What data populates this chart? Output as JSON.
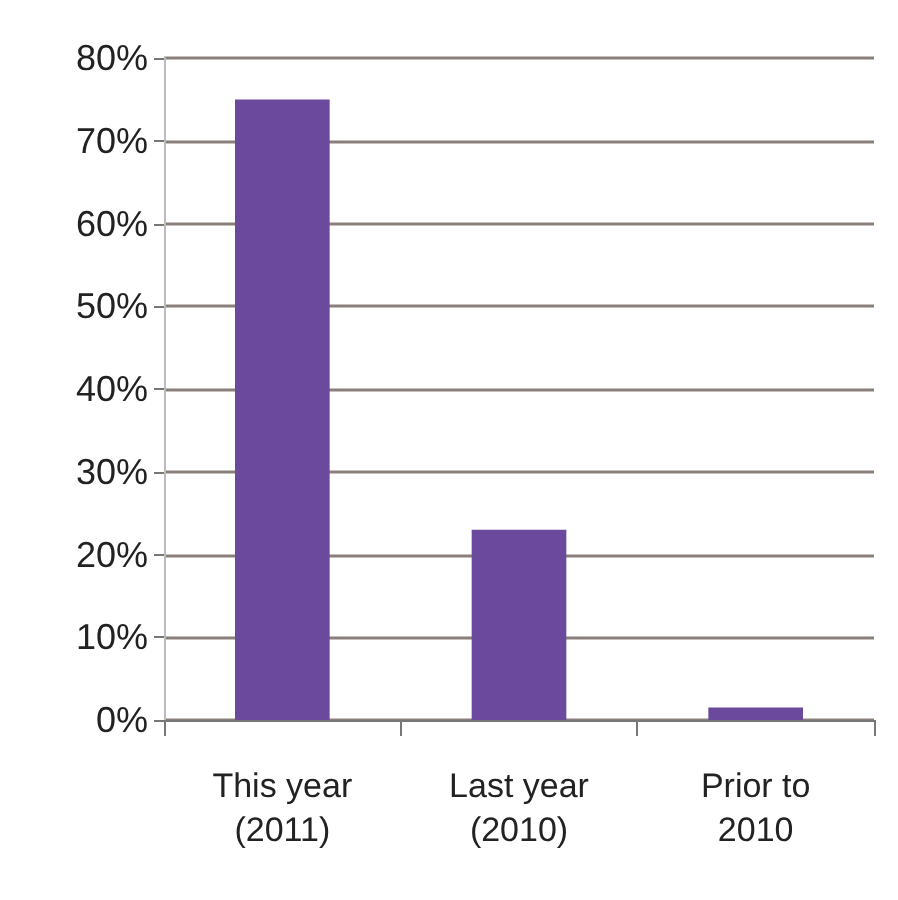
{
  "chart_data": {
    "type": "bar",
    "categories": [
      "This year\n(2011)",
      "Last year\n(2010)",
      "Prior to\n2010"
    ],
    "values": [
      75,
      23,
      1.5
    ],
    "color": "#6b4a9e",
    "ylim": [
      0,
      80
    ],
    "yticks": [
      {
        "value": 0,
        "label": "0%"
      },
      {
        "value": 10,
        "label": "10%"
      },
      {
        "value": 20,
        "label": "20%"
      },
      {
        "value": 30,
        "label": "30%"
      },
      {
        "value": 40,
        "label": "40%"
      },
      {
        "value": 50,
        "label": "50%"
      },
      {
        "value": 60,
        "label": "60%"
      },
      {
        "value": 70,
        "label": "70%"
      },
      {
        "value": 80,
        "label": "80%"
      }
    ],
    "grid": "y"
  }
}
